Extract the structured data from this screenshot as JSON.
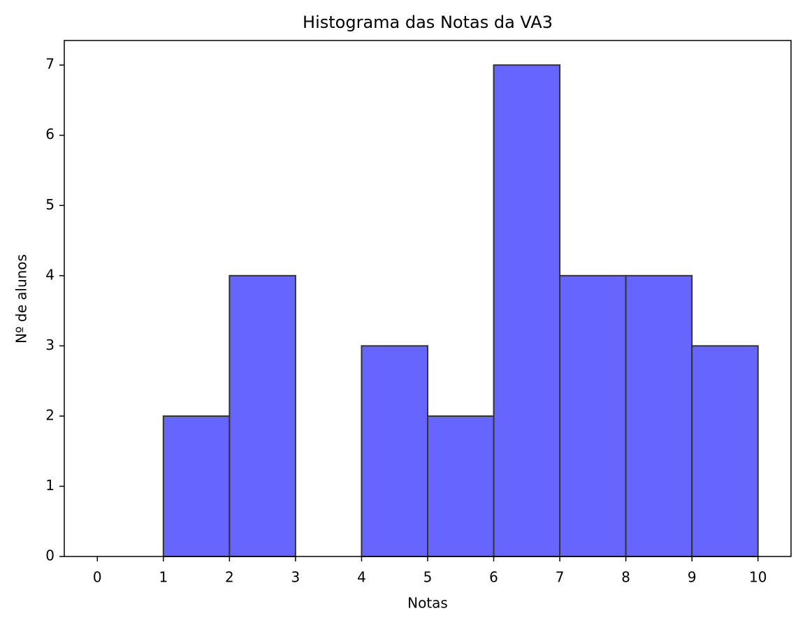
{
  "chart_data": {
    "type": "histogram",
    "title": "Histograma das Notas da VA3",
    "xlabel": "Notas",
    "ylabel": "Nº de alunos",
    "bins": [
      0,
      1,
      2,
      3,
      4,
      5,
      6,
      7,
      8,
      9,
      10
    ],
    "values": [
      0,
      2,
      4,
      0,
      3,
      2,
      7,
      4,
      4,
      3
    ],
    "color": "#6666ff",
    "edgecolor": "#333333",
    "xlim": [
      -0.5,
      10.5
    ],
    "ylim": [
      0,
      7.35
    ],
    "xticks": [
      0,
      1,
      2,
      3,
      4,
      5,
      6,
      7,
      8,
      9,
      10
    ],
    "yticks": [
      0,
      1,
      2,
      3,
      4,
      5,
      6,
      7
    ],
    "grid": false
  }
}
